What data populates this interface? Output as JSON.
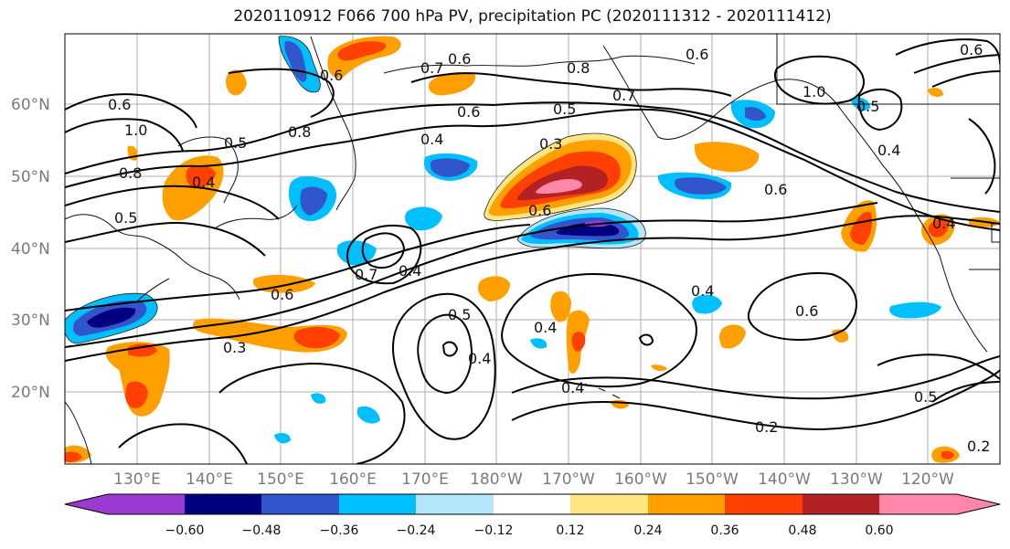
{
  "title": "2020110912 F066 700 hPa PV, precipitation PC (2020111312 - 2020111412)",
  "axes": {
    "lat_labels": [
      "60°N",
      "50°N",
      "40°N",
      "30°N",
      "20°N"
    ],
    "lon_labels": [
      "130°E",
      "140°E",
      "150°E",
      "160°E",
      "170°E",
      "180°W",
      "170°W",
      "160°W",
      "150°W",
      "140°W",
      "130°W",
      "120°W"
    ]
  },
  "colorbar": {
    "ticks": [
      "−0.60",
      "−0.48",
      "−0.36",
      "−0.24",
      "−0.12",
      "0.12",
      "0.24",
      "0.36",
      "0.48",
      "0.60"
    ],
    "colors": [
      "#9b3ad1",
      "#000080",
      "#3355cc",
      "#00bfff",
      "#b3e5fc",
      "#ffffff",
      "#ffe680",
      "#ff9f00",
      "#ff4000",
      "#b22222",
      "#ff88aa"
    ]
  },
  "contour_labels": [
    "0.6",
    "0.7",
    "0.6",
    "0.8",
    "0.7",
    "0.6",
    "1.0",
    "0.6",
    "1.0",
    "0.5",
    "0.8",
    "0.6",
    "0.5",
    "0.4",
    "0.3",
    "0.6",
    "0.6",
    "0.5",
    "0.4",
    "0.8",
    "0.5",
    "0.4",
    "0.6",
    "0.7",
    "0.4",
    "0.6",
    "0.4",
    "0.5",
    "0.4",
    "0.4",
    "0.6",
    "0.3",
    "0.4",
    "0.4",
    "0.5",
    "0.2",
    "0.2"
  ]
}
